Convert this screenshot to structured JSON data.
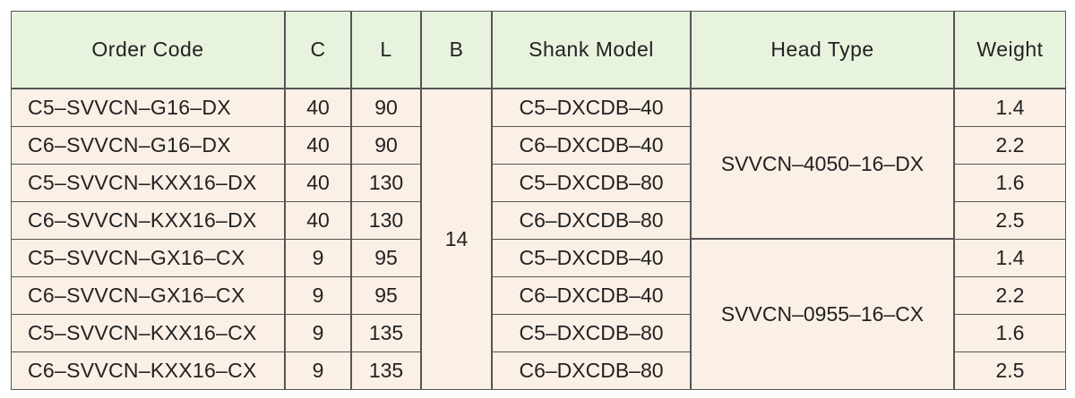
{
  "headers": {
    "order_code": "Order Code",
    "c": "C",
    "l": "L",
    "b": "B",
    "shank_model": "Shank Model",
    "head_type": "Head Type",
    "weight": "Weight"
  },
  "b_value": "14",
  "head_types": [
    "SVVCN–4050–16–DX",
    "SVVCN–0955–16–CX"
  ],
  "rows": [
    {
      "order_code": "C5–SVVCN–G16–DX",
      "c": "40",
      "l": "90",
      "shank_model": "C5–DXCDB–40",
      "weight": "1.4"
    },
    {
      "order_code": "C6–SVVCN–G16–DX",
      "c": "40",
      "l": "90",
      "shank_model": "C6–DXCDB–40",
      "weight": "2.2"
    },
    {
      "order_code": "C5–SVVCN–KXX16–DX",
      "c": "40",
      "l": "130",
      "shank_model": "C5–DXCDB–80",
      "weight": "1.6"
    },
    {
      "order_code": "C6–SVVCN–KXX16–DX",
      "c": "40",
      "l": "130",
      "shank_model": "C6–DXCDB–80",
      "weight": "2.5"
    },
    {
      "order_code": "C5–SVVCN–GX16–CX",
      "c": "9",
      "l": "95",
      "shank_model": "C5–DXCDB–40",
      "weight": "1.4"
    },
    {
      "order_code": "C6–SVVCN–GX16–CX",
      "c": "9",
      "l": "95",
      "shank_model": "C6–DXCDB–40",
      "weight": "2.2"
    },
    {
      "order_code": "C5–SVVCN–KXX16–CX",
      "c": "9",
      "l": "135",
      "shank_model": "C5–DXCDB–80",
      "weight": "1.6"
    },
    {
      "order_code": "C6–SVVCN–KXX16–CX",
      "c": "9",
      "l": "135",
      "shank_model": "C6–DXCDB–80",
      "weight": "2.5"
    }
  ]
}
